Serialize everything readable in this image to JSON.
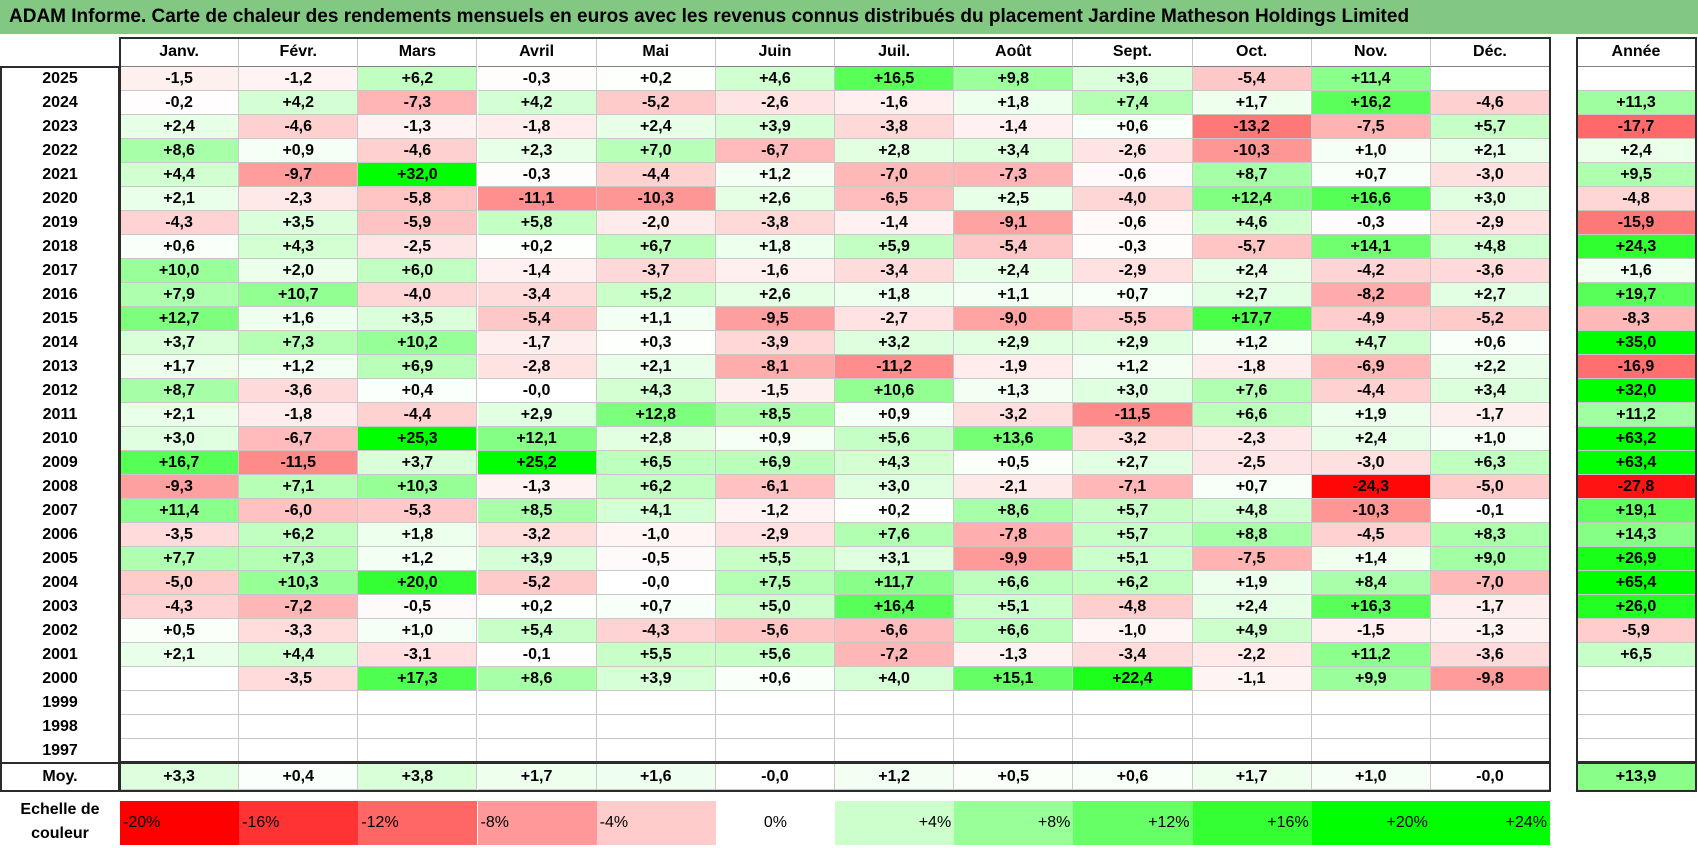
{
  "title": "ADAM Informe. Carte de chaleur des rendements mensuels en euros avec les revenus connus distribués du placement Jardine Matheson Holdings Limited",
  "colors": {
    "title_bg": "#82c882",
    "max_red": "#ff0000",
    "max_green": "#00ff00",
    "neutral": "#ffffff"
  },
  "chart_data": {
    "type": "heatmap",
    "months": [
      "Janv.",
      "Févr.",
      "Mars",
      "Avril",
      "Mai",
      "Juin",
      "Juil.",
      "Août",
      "Sept.",
      "Oct.",
      "Nov.",
      "Déc."
    ],
    "year_header": "Année",
    "rows": [
      {
        "year": "2025",
        "values": [
          "-1,5",
          "-1,2",
          "+6,2",
          "-0,3",
          "+0,2",
          "+4,6",
          "+16,5",
          "+9,8",
          "+3,6",
          "-5,4",
          "+11,4",
          ""
        ],
        "annual": ""
      },
      {
        "year": "2024",
        "values": [
          "-0,2",
          "+4,2",
          "-7,3",
          "+4,2",
          "-5,2",
          "-2,6",
          "-1,6",
          "+1,8",
          "+7,4",
          "+1,7",
          "+16,2",
          "-4,6"
        ],
        "annual": "+11,3"
      },
      {
        "year": "2023",
        "values": [
          "+2,4",
          "-4,6",
          "-1,3",
          "-1,8",
          "+2,4",
          "+3,9",
          "-3,8",
          "-1,4",
          "+0,6",
          "-13,2",
          "-7,5",
          "+5,7"
        ],
        "annual": "-17,7"
      },
      {
        "year": "2022",
        "values": [
          "+8,6",
          "+0,9",
          "-4,6",
          "+2,3",
          "+7,0",
          "-6,7",
          "+2,8",
          "+3,4",
          "-2,6",
          "-10,3",
          "+1,0",
          "+2,1"
        ],
        "annual": "+2,4"
      },
      {
        "year": "2021",
        "values": [
          "+4,4",
          "-9,7",
          "+32,0",
          "-0,3",
          "-4,4",
          "+1,2",
          "-7,0",
          "-7,3",
          "-0,6",
          "+8,7",
          "+0,7",
          "-3,0"
        ],
        "annual": "+9,5"
      },
      {
        "year": "2020",
        "values": [
          "+2,1",
          "-2,3",
          "-5,8",
          "-11,1",
          "-10,3",
          "+2,6",
          "-6,5",
          "+2,5",
          "-4,0",
          "+12,4",
          "+16,6",
          "+3,0"
        ],
        "annual": "-4,8"
      },
      {
        "year": "2019",
        "values": [
          "-4,3",
          "+3,5",
          "-5,9",
          "+5,8",
          "-2,0",
          "-3,8",
          "-1,4",
          "-9,1",
          "-0,6",
          "+4,6",
          "-0,3",
          "-2,9"
        ],
        "annual": "-15,9"
      },
      {
        "year": "2018",
        "values": [
          "+0,6",
          "+4,3",
          "-2,5",
          "+0,2",
          "+6,7",
          "+1,8",
          "+5,9",
          "-5,4",
          "-0,3",
          "-5,7",
          "+14,1",
          "+4,8"
        ],
        "annual": "+24,3"
      },
      {
        "year": "2017",
        "values": [
          "+10,0",
          "+2,0",
          "+6,0",
          "-1,4",
          "-3,7",
          "-1,6",
          "-3,4",
          "+2,4",
          "-2,9",
          "+2,4",
          "-4,2",
          "-3,6"
        ],
        "annual": "+1,6"
      },
      {
        "year": "2016",
        "values": [
          "+7,9",
          "+10,7",
          "-4,0",
          "-3,4",
          "+5,2",
          "+2,6",
          "+1,8",
          "+1,1",
          "+0,7",
          "+2,7",
          "-8,2",
          "+2,7"
        ],
        "annual": "+19,7"
      },
      {
        "year": "2015",
        "values": [
          "+12,7",
          "+1,6",
          "+3,5",
          "-5,4",
          "+1,1",
          "-9,5",
          "-2,7",
          "-9,0",
          "-5,5",
          "+17,7",
          "-4,9",
          "-5,2"
        ],
        "annual": "-8,3"
      },
      {
        "year": "2014",
        "values": [
          "+3,7",
          "+7,3",
          "+10,2",
          "-1,7",
          "+0,3",
          "-3,9",
          "+3,2",
          "+2,9",
          "+2,9",
          "+1,2",
          "+4,7",
          "+0,6"
        ],
        "annual": "+35,0"
      },
      {
        "year": "2013",
        "values": [
          "+1,7",
          "+1,2",
          "+6,9",
          "-2,8",
          "+2,1",
          "-8,1",
          "-11,2",
          "-1,9",
          "+1,2",
          "-1,8",
          "-6,9",
          "+2,2"
        ],
        "annual": "-16,9"
      },
      {
        "year": "2012",
        "values": [
          "+8,7",
          "-3,6",
          "+0,4",
          "-0,0",
          "+4,3",
          "-1,5",
          "+10,6",
          "+1,3",
          "+3,0",
          "+7,6",
          "-4,4",
          "+3,4"
        ],
        "annual": "+32,0"
      },
      {
        "year": "2011",
        "values": [
          "+2,1",
          "-1,8",
          "-4,4",
          "+2,9",
          "+12,8",
          "+8,5",
          "+0,9",
          "-3,2",
          "-11,5",
          "+6,6",
          "+1,9",
          "-1,7"
        ],
        "annual": "+11,2"
      },
      {
        "year": "2010",
        "values": [
          "+3,0",
          "-6,7",
          "+25,3",
          "+12,1",
          "+2,8",
          "+0,9",
          "+5,6",
          "+13,6",
          "-3,2",
          "-2,3",
          "+2,4",
          "+1,0"
        ],
        "annual": "+63,2"
      },
      {
        "year": "2009",
        "values": [
          "+16,7",
          "-11,5",
          "+3,7",
          "+25,2",
          "+6,5",
          "+6,9",
          "+4,3",
          "+0,5",
          "+2,7",
          "-2,5",
          "-3,0",
          "+6,3"
        ],
        "annual": "+63,4"
      },
      {
        "year": "2008",
        "values": [
          "-9,3",
          "+7,1",
          "+10,3",
          "-1,3",
          "+6,2",
          "-6,1",
          "+3,0",
          "-2,1",
          "-7,1",
          "+0,7",
          "-24,3",
          "-5,0"
        ],
        "annual": "-27,8"
      },
      {
        "year": "2007",
        "values": [
          "+11,4",
          "-6,0",
          "-5,3",
          "+8,5",
          "+4,1",
          "-1,2",
          "+0,2",
          "+8,6",
          "+5,7",
          "+4,8",
          "-10,3",
          "-0,1"
        ],
        "annual": "+19,1"
      },
      {
        "year": "2006",
        "values": [
          "-3,5",
          "+6,2",
          "+1,8",
          "-3,2",
          "-1,0",
          "-2,9",
          "+7,6",
          "-7,8",
          "+5,7",
          "+8,8",
          "-4,5",
          "+8,3"
        ],
        "annual": "+14,3"
      },
      {
        "year": "2005",
        "values": [
          "+7,7",
          "+7,3",
          "+1,2",
          "+3,9",
          "-0,5",
          "+5,5",
          "+3,1",
          "-9,9",
          "+5,1",
          "-7,5",
          "+1,4",
          "+9,0"
        ],
        "annual": "+26,9"
      },
      {
        "year": "2004",
        "values": [
          "-5,0",
          "+10,3",
          "+20,0",
          "-5,2",
          "-0,0",
          "+7,5",
          "+11,7",
          "+6,6",
          "+6,2",
          "+1,9",
          "+8,4",
          "-7,0"
        ],
        "annual": "+65,4"
      },
      {
        "year": "2003",
        "values": [
          "-4,3",
          "-7,2",
          "-0,5",
          "+0,2",
          "+0,7",
          "+5,0",
          "+16,4",
          "+5,1",
          "-4,8",
          "+2,4",
          "+16,3",
          "-1,7"
        ],
        "annual": "+26,0"
      },
      {
        "year": "2002",
        "values": [
          "+0,5",
          "-3,3",
          "+1,0",
          "+5,4",
          "-4,3",
          "-5,6",
          "-6,6",
          "+6,6",
          "-1,0",
          "+4,9",
          "-1,5",
          "-1,3"
        ],
        "annual": "-5,9"
      },
      {
        "year": "2001",
        "values": [
          "+2,1",
          "+4,4",
          "-3,1",
          "-0,1",
          "+5,5",
          "+5,6",
          "-7,2",
          "-1,3",
          "-3,4",
          "-2,2",
          "+11,2",
          "-3,6"
        ],
        "annual": "+6,5"
      },
      {
        "year": "2000",
        "values": [
          "",
          "-3,5",
          "+17,3",
          "+8,6",
          "+3,9",
          "+0,6",
          "+4,0",
          "+15,1",
          "+22,4",
          "-1,1",
          "+9,9",
          "-9,8"
        ],
        "annual": ""
      },
      {
        "year": "1999",
        "values": [
          "",
          "",
          "",
          "",
          "",
          "",
          "",
          "",
          "",
          "",
          "",
          ""
        ],
        "annual": ""
      },
      {
        "year": "1998",
        "values": [
          "",
          "",
          "",
          "",
          "",
          "",
          "",
          "",
          "",
          "",
          "",
          ""
        ],
        "annual": ""
      },
      {
        "year": "1997",
        "values": [
          "",
          "",
          "",
          "",
          "",
          "",
          "",
          "",
          "",
          "",
          "",
          ""
        ],
        "annual": ""
      }
    ],
    "average": {
      "label": "Moy.",
      "values": [
        "+3,3",
        "+0,4",
        "+3,8",
        "+1,7",
        "+1,6",
        "-0,0",
        "+1,2",
        "+0,5",
        "+0,6",
        "+1,7",
        "+1,0",
        "-0,0"
      ],
      "annual": "+13,9"
    },
    "scale": {
      "label_line1": "Echelle de",
      "label_line2": "couleur",
      "steps": [
        "-20%",
        "-16%",
        "-12%",
        "-8%",
        "-4%",
        "0%",
        "+4%",
        "+8%",
        "+12%",
        "+16%",
        "+20%",
        "+24%"
      ],
      "range": [
        -20,
        24
      ]
    }
  }
}
